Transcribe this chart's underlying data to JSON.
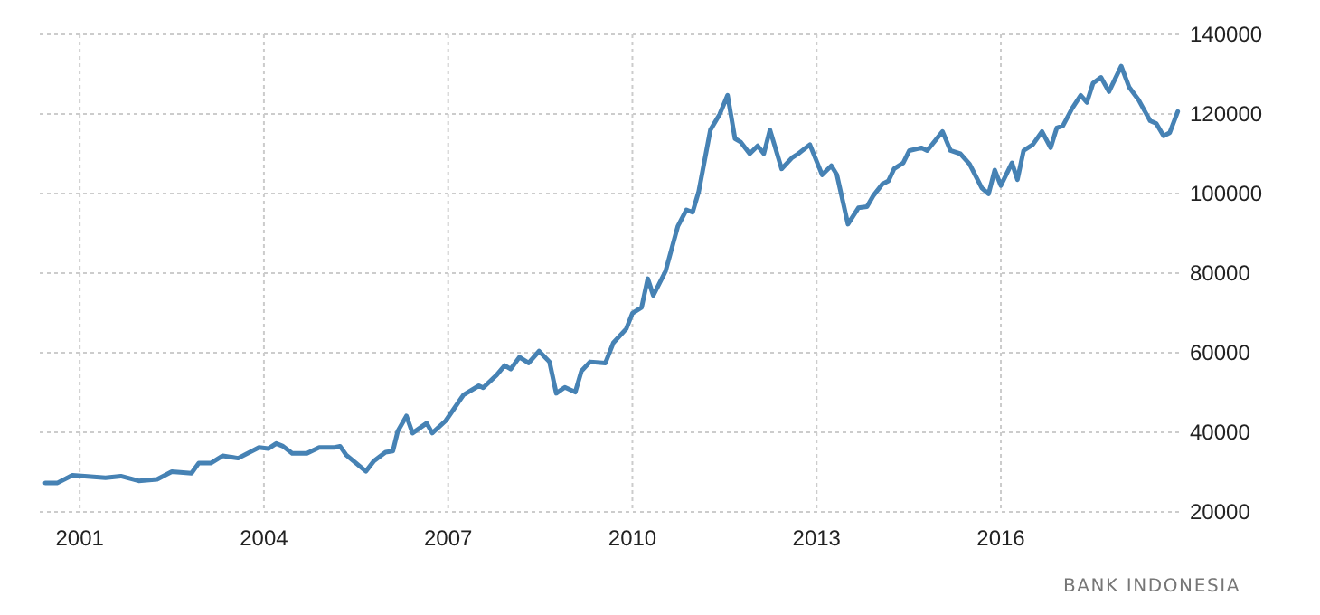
{
  "chart_data": {
    "type": "line",
    "x": [
      2000.44,
      2000.64,
      2000.88,
      2001.08,
      2001.42,
      2001.67,
      2001.96,
      2002.26,
      2002.5,
      2002.82,
      2002.94,
      2003.14,
      2003.33,
      2003.58,
      2003.92,
      2004.07,
      2004.2,
      2004.31,
      2004.46,
      2004.7,
      2004.9,
      2005.15,
      2005.24,
      2005.34,
      2005.66,
      2005.79,
      2005.98,
      2006.1,
      2006.18,
      2006.32,
      2006.42,
      2006.65,
      2006.74,
      2006.96,
      2007.25,
      2007.5,
      2007.57,
      2007.79,
      2007.92,
      2008.02,
      2008.16,
      2008.31,
      2008.48,
      2008.65,
      2008.76,
      2008.9,
      2009.07,
      2009.17,
      2009.31,
      2009.56,
      2009.69,
      2009.9,
      2010.0,
      2010.15,
      2010.25,
      2010.34,
      2010.54,
      2010.74,
      2010.88,
      2010.98,
      2011.08,
      2011.27,
      2011.42,
      2011.55,
      2011.67,
      2011.76,
      2011.91,
      2012.04,
      2012.14,
      2012.24,
      2012.43,
      2012.6,
      2012.7,
      2012.89,
      2013.09,
      2013.24,
      2013.33,
      2013.51,
      2013.68,
      2013.82,
      2013.92,
      2014.07,
      2014.17,
      2014.26,
      2014.41,
      2014.51,
      2014.71,
      2014.8,
      2015.05,
      2015.18,
      2015.34,
      2015.49,
      2015.69,
      2015.8,
      2015.9,
      2016.0,
      2016.18,
      2016.27,
      2016.37,
      2016.52,
      2016.67,
      2016.81,
      2016.91,
      2017.01,
      2017.16,
      2017.3,
      2017.4,
      2017.5,
      2017.63,
      2017.76,
      2017.96,
      2018.09,
      2018.24,
      2018.43,
      2018.53,
      2018.65,
      2018.75,
      2018.88
    ],
    "series": [
      {
        "color": "#4682b4",
        "values": [
          27300,
          27300,
          29200,
          29000,
          28600,
          29000,
          27800,
          28200,
          30100,
          29700,
          32300,
          32300,
          34100,
          33500,
          36200,
          35900,
          37200,
          36500,
          34700,
          34700,
          36200,
          36200,
          36500,
          34300,
          30200,
          32800,
          35000,
          35300,
          40300,
          44100,
          39800,
          42300,
          39800,
          42900,
          49400,
          51700,
          51200,
          54400,
          56800,
          55900,
          58900,
          57400,
          60400,
          57700,
          49800,
          51300,
          50100,
          55400,
          57700,
          57400,
          62500,
          66000,
          69900,
          71400,
          78600,
          74400,
          80500,
          91800,
          95900,
          95300,
          100500,
          116000,
          119900,
          124700,
          113800,
          113000,
          110000,
          112000,
          110000,
          116000,
          106200,
          109000,
          110000,
          112300,
          104700,
          107000,
          104700,
          92300,
          96400,
          96700,
          99400,
          102400,
          103200,
          106200,
          107700,
          110800,
          111500,
          110800,
          115600,
          110800,
          110000,
          107400,
          101400,
          99900,
          105900,
          102000,
          107700,
          103500,
          110800,
          112300,
          115600,
          111500,
          116500,
          117000,
          121400,
          124700,
          122900,
          127700,
          129200,
          125600,
          132000,
          126700,
          123600,
          118300,
          117600,
          114500,
          115300,
          120600
        ]
      }
    ],
    "xlim": [
      2000.35,
      2018.9
    ],
    "xticks": [
      2001,
      2004,
      2007,
      2010,
      2013,
      2016
    ],
    "ylim": [
      20000,
      140000
    ],
    "yticks": [
      20000,
      40000,
      60000,
      80000,
      100000,
      120000,
      140000
    ],
    "grid": true,
    "line_style": "solid",
    "annotations": [
      "BANK INDONESIA"
    ]
  }
}
